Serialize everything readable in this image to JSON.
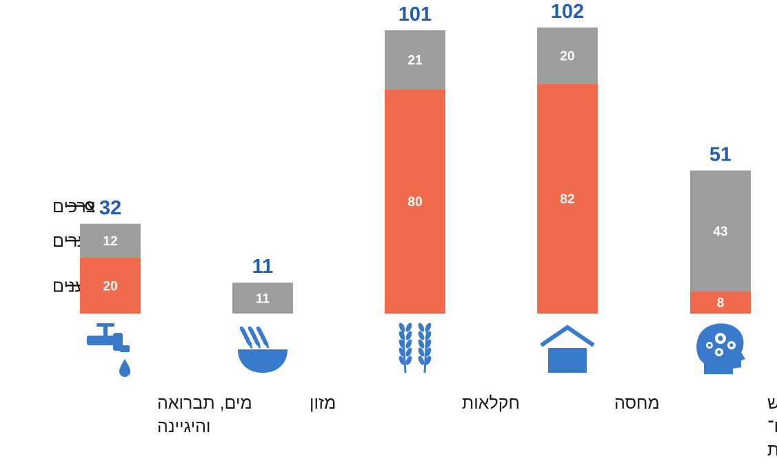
{
  "chart_data": {
    "type": "bar",
    "stacked": true,
    "categories": [
      [
        "מים, תברואה",
        "והיגיינה"
      ],
      [
        "מזון"
      ],
      [
        "חקלאות"
      ],
      [
        "מחסה"
      ],
      [
        "בריאות הנפש",
        "ותמיכה פסיכו־",
        "חברתית"
      ]
    ],
    "icons": [
      "water-tap-icon",
      "food-bowl-icon",
      "wheat-icon",
      "shelter-icon",
      "mental-health-icon"
    ],
    "series": [
      {
        "name": "מענים",
        "values": [
          20,
          0,
          80,
          82,
          8
        ],
        "color": "#f06a4e"
      },
      {
        "name": "פערים",
        "values": [
          12,
          11,
          21,
          20,
          43
        ],
        "color": "#9e9e9e"
      }
    ],
    "totals_name": "צרכים",
    "totals": [
      32,
      11,
      101,
      102,
      51
    ],
    "total_color": "#1f5fae",
    "icon_color": "#3a7acb",
    "legend_position": "left"
  }
}
